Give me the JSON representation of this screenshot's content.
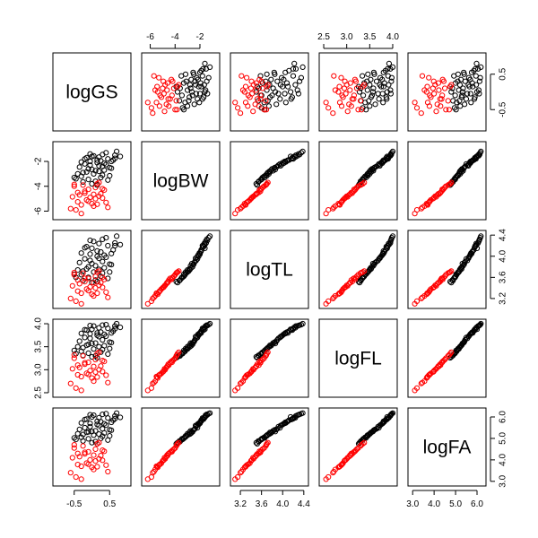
{
  "chart_data": {
    "type": "scatter",
    "variables": [
      "logGS",
      "logBW",
      "logTL",
      "logFL",
      "logFA"
    ],
    "ranges": {
      "logGS": [
        -1.0,
        1.0
      ],
      "logBW": [
        -6.4,
        -0.7
      ],
      "logTL": [
        3.08,
        4.42
      ],
      "logFL": [
        2.48,
        4.02
      ],
      "logFA": [
        2.95,
        6.25
      ]
    },
    "ticks": {
      "logGS": [
        -0.5,
        0.5
      ],
      "logBW": [
        -6,
        -4,
        -2
      ],
      "logTL": [
        3.2,
        3.6,
        4.0,
        4.4
      ],
      "logFL": [
        2.5,
        3.0,
        3.5,
        4.0
      ],
      "logFA": [
        3.0,
        4.0,
        5.0,
        6.0
      ]
    },
    "tick_labels": {
      "logGS": [
        "-0.5",
        "0.5"
      ],
      "logBW": [
        "-6",
        "-4",
        "-2"
      ],
      "logTL": [
        "3.2",
        "3.6",
        "4.0",
        "4.4"
      ],
      "logFL": [
        "2.5",
        "3.0",
        "3.5",
        "4.0"
      ],
      "logFA": [
        "3.0",
        "4.0",
        "5.0",
        "6.0"
      ]
    },
    "series": [
      {
        "color": "#000000",
        "points": [
          [
            0.0,
            -1.6,
            4.15,
            3.88,
            6.0
          ],
          [
            0.15,
            -1.9,
            4.1,
            3.8,
            5.8
          ],
          [
            -0.2,
            -2.2,
            3.95,
            3.7,
            5.5
          ],
          [
            0.3,
            -2.4,
            3.9,
            3.65,
            5.45
          ],
          [
            0.45,
            -1.8,
            4.2,
            3.9,
            5.95
          ],
          [
            -0.1,
            -2.6,
            3.8,
            3.55,
            5.3
          ],
          [
            0.05,
            -3.0,
            3.7,
            3.45,
            5.15
          ],
          [
            0.2,
            -2.8,
            3.75,
            3.5,
            5.2
          ],
          [
            -0.3,
            -3.2,
            3.65,
            3.4,
            5.05
          ],
          [
            0.55,
            -2.0,
            4.05,
            3.8,
            5.75
          ],
          [
            0.65,
            -1.5,
            4.25,
            3.95,
            6.05
          ],
          [
            -0.45,
            -3.4,
            3.6,
            3.35,
            4.95
          ],
          [
            0.1,
            -3.6,
            3.55,
            3.3,
            4.85
          ],
          [
            -0.05,
            -2.3,
            3.92,
            3.68,
            5.55
          ],
          [
            0.35,
            -2.7,
            3.78,
            3.52,
            5.25
          ],
          [
            0.4,
            -1.3,
            4.35,
            3.98,
            6.15
          ],
          [
            -0.15,
            -1.7,
            4.18,
            3.86,
            5.9
          ],
          [
            0.25,
            -3.3,
            3.62,
            3.38,
            5.0
          ],
          [
            0.5,
            -2.5,
            3.85,
            3.6,
            5.4
          ],
          [
            0.7,
            -1.2,
            4.38,
            4.0,
            6.18
          ],
          [
            -0.25,
            -2.9,
            3.72,
            3.48,
            5.18
          ],
          [
            0.0,
            -3.8,
            3.5,
            3.28,
            4.8
          ],
          [
            0.15,
            -2.1,
            4.0,
            3.75,
            5.65
          ],
          [
            -0.35,
            -2.45,
            3.88,
            3.62,
            5.42
          ],
          [
            0.6,
            -1.9,
            4.12,
            3.84,
            5.85
          ],
          [
            0.3,
            -3.1,
            3.68,
            3.44,
            5.1
          ],
          [
            -0.05,
            -1.4,
            4.3,
            3.96,
            6.1
          ],
          [
            0.2,
            -2.35,
            3.96,
            3.72,
            5.6
          ],
          [
            -0.4,
            -3.0,
            3.74,
            3.5,
            5.22
          ],
          [
            0.45,
            -3.5,
            3.58,
            3.34,
            4.92
          ],
          [
            0.8,
            -1.6,
            4.22,
            3.92,
            5.98
          ],
          [
            -0.2,
            -1.8,
            4.16,
            3.87,
            5.88
          ],
          [
            0.1,
            -2.75,
            3.82,
            3.58,
            5.35
          ],
          [
            0.35,
            -2.15,
            4.02,
            3.77,
            5.68
          ],
          [
            -0.1,
            -3.45,
            3.6,
            3.36,
            4.98
          ],
          [
            0.55,
            -2.55,
            3.84,
            3.59,
            5.38
          ],
          [
            0.05,
            -1.55,
            4.28,
            3.95,
            6.08
          ],
          [
            -0.3,
            -2.05,
            4.06,
            3.79,
            5.72
          ],
          [
            0.25,
            -1.95,
            4.08,
            3.82,
            5.78
          ],
          [
            0.0,
            -2.65,
            3.86,
            3.57,
            5.32
          ],
          [
            -0.5,
            -3.3,
            3.66,
            3.42,
            5.02
          ],
          [
            0.4,
            -2.25,
            3.98,
            3.73,
            5.62
          ],
          [
            0.15,
            -3.9,
            3.52,
            3.26,
            4.75
          ],
          [
            -0.15,
            -2.85,
            3.76,
            3.53,
            5.28
          ],
          [
            0.65,
            -1.75,
            4.2,
            3.89,
            5.92
          ],
          [
            0.3,
            -1.45,
            4.32,
            3.97,
            6.12
          ],
          [
            -0.25,
            -3.65,
            3.54,
            3.31,
            4.88
          ],
          [
            0.5,
            -3.15,
            3.7,
            3.46,
            5.12
          ],
          [
            -0.05,
            -2.0,
            4.04,
            3.78,
            5.7
          ],
          [
            0.2,
            -1.65,
            4.24,
            3.91,
            5.96
          ]
        ]
      },
      {
        "color": "#ff0000",
        "points": [
          [
            -0.6,
            -5.8,
            3.2,
            2.7,
            3.4
          ],
          [
            -0.3,
            -5.5,
            3.3,
            2.85,
            3.7
          ],
          [
            0.1,
            -5.0,
            3.4,
            2.95,
            3.95
          ],
          [
            0.2,
            -4.8,
            3.45,
            3.0,
            4.05
          ],
          [
            -0.1,
            -5.2,
            3.35,
            2.9,
            3.8
          ],
          [
            -0.4,
            -4.5,
            3.55,
            3.1,
            4.3
          ],
          [
            0.3,
            -4.2,
            3.6,
            3.2,
            4.45
          ],
          [
            -0.5,
            -4.0,
            3.65,
            3.25,
            4.55
          ],
          [
            0.05,
            -5.6,
            3.25,
            2.75,
            3.55
          ],
          [
            -0.2,
            -4.4,
            3.58,
            3.15,
            4.35
          ],
          [
            0.15,
            -3.8,
            3.7,
            3.35,
            4.75
          ],
          [
            -0.35,
            -4.7,
            3.48,
            3.05,
            4.15
          ],
          [
            0.4,
            -5.3,
            3.32,
            2.88,
            3.75
          ],
          [
            -0.05,
            -4.9,
            3.42,
            2.98,
            4.0
          ],
          [
            -0.45,
            -5.9,
            3.15,
            2.6,
            3.2
          ],
          [
            0.25,
            -4.6,
            3.5,
            3.08,
            4.2
          ],
          [
            -0.25,
            -3.9,
            3.68,
            3.3,
            4.65
          ],
          [
            0.0,
            -5.4,
            3.28,
            2.82,
            3.65
          ],
          [
            0.35,
            -4.3,
            3.56,
            3.18,
            4.4
          ],
          [
            -0.15,
            -5.1,
            3.38,
            2.92,
            3.85
          ],
          [
            0.1,
            -4.1,
            3.62,
            3.22,
            4.5
          ],
          [
            -0.55,
            -4.85,
            3.44,
            3.02,
            4.1
          ],
          [
            0.2,
            -3.7,
            3.72,
            3.38,
            4.8
          ],
          [
            -0.3,
            -6.2,
            3.1,
            2.55,
            3.1
          ],
          [
            0.45,
            -5.7,
            3.22,
            2.72,
            3.45
          ],
          [
            -0.1,
            -4.25,
            3.58,
            3.16,
            4.38
          ],
          [
            0.05,
            -4.65,
            3.5,
            3.07,
            4.22
          ],
          [
            -0.4,
            -5.25,
            3.34,
            2.89,
            3.78
          ],
          [
            0.3,
            -4.95,
            3.41,
            2.96,
            3.98
          ],
          [
            -0.2,
            -4.55,
            3.52,
            3.12,
            4.28
          ],
          [
            0.15,
            -5.45,
            3.3,
            2.84,
            3.68
          ],
          [
            -0.5,
            -3.85,
            3.69,
            3.32,
            4.7
          ]
        ]
      }
    ]
  }
}
